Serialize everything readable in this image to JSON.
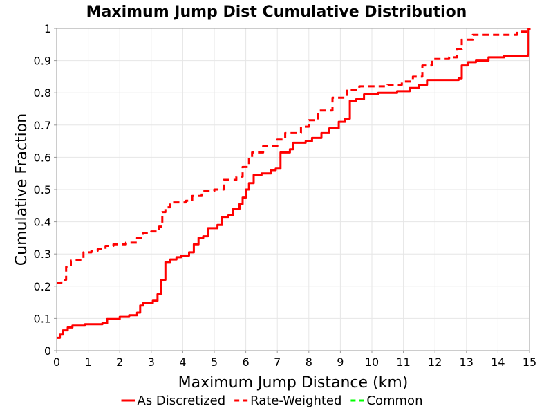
{
  "chart_data": {
    "type": "line",
    "title": "Maximum Jump Dist Cumulative Distribution",
    "xlabel": "Maximum Jump Distance (km)",
    "ylabel": "Cumulative Fraction",
    "xlim": [
      0,
      15
    ],
    "ylim": [
      0,
      1
    ],
    "x_ticks": [
      "0",
      "1",
      "2",
      "3",
      "4",
      "5",
      "6",
      "7",
      "8",
      "9",
      "10",
      "11",
      "12",
      "13",
      "14",
      "15"
    ],
    "y_ticks": [
      "0",
      "0.1",
      "0.2",
      "0.3",
      "0.4",
      "0.5",
      "0.6",
      "0.7",
      "0.8",
      "0.9",
      "1"
    ],
    "grid": true,
    "legend_position": "bottom",
    "series": [
      {
        "name": "As Discretized",
        "color": "#ff0000",
        "dash": "solid",
        "step": true,
        "points": [
          [
            0,
            0.04
          ],
          [
            0.1,
            0.05
          ],
          [
            0.2,
            0.063
          ],
          [
            0.35,
            0.072
          ],
          [
            0.5,
            0.078
          ],
          [
            0.9,
            0.082
          ],
          [
            1.45,
            0.085
          ],
          [
            1.6,
            0.098
          ],
          [
            2.0,
            0.105
          ],
          [
            2.3,
            0.11
          ],
          [
            2.55,
            0.118
          ],
          [
            2.65,
            0.14
          ],
          [
            2.75,
            0.148
          ],
          [
            3.05,
            0.155
          ],
          [
            3.2,
            0.175
          ],
          [
            3.3,
            0.22
          ],
          [
            3.45,
            0.275
          ],
          [
            3.6,
            0.283
          ],
          [
            3.8,
            0.29
          ],
          [
            3.95,
            0.295
          ],
          [
            4.2,
            0.305
          ],
          [
            4.35,
            0.33
          ],
          [
            4.5,
            0.35
          ],
          [
            4.65,
            0.355
          ],
          [
            4.8,
            0.38
          ],
          [
            5.1,
            0.39
          ],
          [
            5.25,
            0.415
          ],
          [
            5.45,
            0.42
          ],
          [
            5.6,
            0.44
          ],
          [
            5.8,
            0.455
          ],
          [
            5.9,
            0.475
          ],
          [
            6.0,
            0.5
          ],
          [
            6.1,
            0.52
          ],
          [
            6.25,
            0.545
          ],
          [
            6.5,
            0.55
          ],
          [
            6.8,
            0.56
          ],
          [
            6.95,
            0.565
          ],
          [
            7.1,
            0.615
          ],
          [
            7.4,
            0.625
          ],
          [
            7.5,
            0.645
          ],
          [
            7.9,
            0.65
          ],
          [
            8.1,
            0.66
          ],
          [
            8.4,
            0.675
          ],
          [
            8.65,
            0.69
          ],
          [
            8.95,
            0.71
          ],
          [
            9.15,
            0.72
          ],
          [
            9.3,
            0.775
          ],
          [
            9.5,
            0.78
          ],
          [
            9.75,
            0.795
          ],
          [
            10.2,
            0.8
          ],
          [
            10.8,
            0.805
          ],
          [
            11.2,
            0.815
          ],
          [
            11.5,
            0.825
          ],
          [
            11.75,
            0.84
          ],
          [
            12.75,
            0.845
          ],
          [
            12.85,
            0.885
          ],
          [
            13.05,
            0.895
          ],
          [
            13.3,
            0.9
          ],
          [
            13.7,
            0.91
          ],
          [
            14.2,
            0.915
          ],
          [
            14.95,
            0.918
          ],
          [
            14.97,
            1.0
          ]
        ]
      },
      {
        "name": "Rate-Weighted",
        "color": "#ff0000",
        "dash": "dashed",
        "step": true,
        "points": [
          [
            0,
            0.21
          ],
          [
            0.15,
            0.22
          ],
          [
            0.3,
            0.26
          ],
          [
            0.45,
            0.28
          ],
          [
            0.75,
            0.285
          ],
          [
            0.85,
            0.305
          ],
          [
            1.1,
            0.31
          ],
          [
            1.3,
            0.315
          ],
          [
            1.55,
            0.325
          ],
          [
            1.8,
            0.33
          ],
          [
            2.2,
            0.335
          ],
          [
            2.55,
            0.35
          ],
          [
            2.75,
            0.365
          ],
          [
            3.0,
            0.37
          ],
          [
            3.25,
            0.385
          ],
          [
            3.35,
            0.43
          ],
          [
            3.45,
            0.445
          ],
          [
            3.6,
            0.46
          ],
          [
            4.1,
            0.465
          ],
          [
            4.3,
            0.48
          ],
          [
            4.6,
            0.495
          ],
          [
            5.0,
            0.5
          ],
          [
            5.3,
            0.53
          ],
          [
            5.7,
            0.54
          ],
          [
            5.9,
            0.57
          ],
          [
            6.1,
            0.6
          ],
          [
            6.2,
            0.615
          ],
          [
            6.55,
            0.635
          ],
          [
            7.0,
            0.655
          ],
          [
            7.25,
            0.675
          ],
          [
            7.75,
            0.695
          ],
          [
            8.0,
            0.715
          ],
          [
            8.3,
            0.745
          ],
          [
            8.75,
            0.785
          ],
          [
            9.2,
            0.81
          ],
          [
            9.6,
            0.82
          ],
          [
            10.5,
            0.825
          ],
          [
            10.95,
            0.835
          ],
          [
            11.3,
            0.85
          ],
          [
            11.6,
            0.885
          ],
          [
            11.9,
            0.905
          ],
          [
            12.45,
            0.91
          ],
          [
            12.7,
            0.935
          ],
          [
            12.85,
            0.965
          ],
          [
            13.2,
            0.98
          ],
          [
            14.6,
            0.99
          ],
          [
            15.0,
            1.0
          ]
        ]
      },
      {
        "name": "Common",
        "color": "#00ff00",
        "dash": "dashed",
        "points": []
      }
    ]
  }
}
